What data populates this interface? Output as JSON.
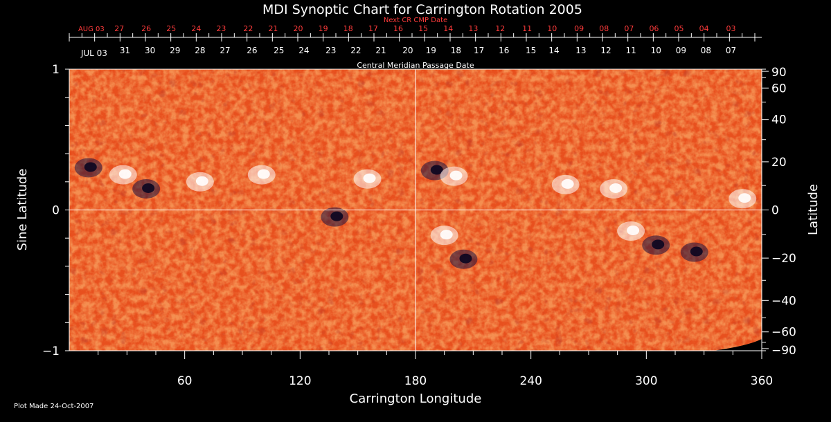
{
  "colors": {
    "background": "#000000",
    "map_base": "#e8501e",
    "positive_flux": "#ffffff",
    "negative_flux": "#1a1040",
    "next_rotation_dates": "#ff3b3b",
    "grid": "#ffffff"
  },
  "chart_data": {
    "type": "heatmap",
    "title": "MDI Synoptic Chart for Carrington Rotation 2005",
    "xlabel": "Carrington Longitude",
    "ylabel_left": "Sine Latitude",
    "ylabel_right": "Latitude",
    "xlim": [
      0,
      360
    ],
    "ylim_sine": [
      -1,
      1
    ],
    "x_ticks": [
      60,
      120,
      180,
      240,
      300,
      360
    ],
    "y_ticks_left": [
      {
        "value": 1,
        "label": "1"
      },
      {
        "value": 0,
        "label": "0"
      },
      {
        "value": -1,
        "label": "−1"
      }
    ],
    "y_ticks_right": [
      90,
      60,
      40,
      20,
      0,
      -20,
      -40,
      -60,
      -90
    ],
    "y_ticks_right_labels": [
      "90",
      "60",
      "40",
      "20",
      "0",
      "−20",
      "−40",
      "−60",
      "−90"
    ],
    "grid_lines": {
      "longitude": 180,
      "sine_latitude": 0
    },
    "top_axis_title": "Central Meridian Passage Date",
    "next_axis_title": "Next CR CMP Date",
    "cmp_dates": [
      {
        "lon": 5,
        "label": "JUL 03"
      },
      {
        "lon": 29,
        "label": "31"
      },
      {
        "lon": 42,
        "label": "30"
      },
      {
        "lon": 55,
        "label": "29"
      },
      {
        "lon": 68,
        "label": "28"
      },
      {
        "lon": 81,
        "label": "27"
      },
      {
        "lon": 95,
        "label": "26"
      },
      {
        "lon": 109,
        "label": "25"
      },
      {
        "lon": 122,
        "label": "24"
      },
      {
        "lon": 136,
        "label": "23"
      },
      {
        "lon": 149,
        "label": "22"
      },
      {
        "lon": 162,
        "label": "21"
      },
      {
        "lon": 176,
        "label": "20"
      },
      {
        "lon": 188,
        "label": "19"
      },
      {
        "lon": 201,
        "label": "18"
      },
      {
        "lon": 213,
        "label": "17"
      },
      {
        "lon": 226,
        "label": "16"
      },
      {
        "lon": 240,
        "label": "15"
      },
      {
        "lon": 252,
        "label": "14"
      },
      {
        "lon": 266,
        "label": "13"
      },
      {
        "lon": 279,
        "label": "12"
      },
      {
        "lon": 292,
        "label": "11"
      },
      {
        "lon": 305,
        "label": "10"
      },
      {
        "lon": 318,
        "label": "09"
      },
      {
        "lon": 331,
        "label": "08"
      },
      {
        "lon": 344,
        "label": "07"
      }
    ],
    "next_cr_dates": [
      {
        "lon": 5,
        "label": "AUG 03"
      },
      {
        "lon": 26,
        "label": "27"
      },
      {
        "lon": 40,
        "label": "26"
      },
      {
        "lon": 53,
        "label": "25"
      },
      {
        "lon": 66,
        "label": "24"
      },
      {
        "lon": 79,
        "label": "23"
      },
      {
        "lon": 93,
        "label": "22"
      },
      {
        "lon": 106,
        "label": "21"
      },
      {
        "lon": 119,
        "label": "20"
      },
      {
        "lon": 132,
        "label": "19"
      },
      {
        "lon": 145,
        "label": "18"
      },
      {
        "lon": 158,
        "label": "17"
      },
      {
        "lon": 171,
        "label": "16"
      },
      {
        "lon": 184,
        "label": "15"
      },
      {
        "lon": 197,
        "label": "14"
      },
      {
        "lon": 210,
        "label": "13"
      },
      {
        "lon": 224,
        "label": "12"
      },
      {
        "lon": 238,
        "label": "11"
      },
      {
        "lon": 251,
        "label": "10"
      },
      {
        "lon": 265,
        "label": "09"
      },
      {
        "lon": 278,
        "label": "08"
      },
      {
        "lon": 291,
        "label": "07"
      },
      {
        "lon": 304,
        "label": "06"
      },
      {
        "lon": 317,
        "label": "05"
      },
      {
        "lon": 330,
        "label": "04"
      },
      {
        "lon": 344,
        "label": "03"
      }
    ],
    "active_regions": [
      {
        "lon": 10,
        "sinlat": 0.3,
        "polarity": "negative"
      },
      {
        "lon": 28,
        "sinlat": 0.25,
        "polarity": "positive"
      },
      {
        "lon": 40,
        "sinlat": 0.15,
        "polarity": "negative"
      },
      {
        "lon": 68,
        "sinlat": 0.2,
        "polarity": "positive"
      },
      {
        "lon": 100,
        "sinlat": 0.25,
        "polarity": "positive"
      },
      {
        "lon": 138,
        "sinlat": -0.05,
        "polarity": "negative"
      },
      {
        "lon": 155,
        "sinlat": 0.22,
        "polarity": "positive"
      },
      {
        "lon": 190,
        "sinlat": 0.28,
        "polarity": "negative"
      },
      {
        "lon": 200,
        "sinlat": 0.24,
        "polarity": "positive"
      },
      {
        "lon": 195,
        "sinlat": -0.18,
        "polarity": "positive"
      },
      {
        "lon": 205,
        "sinlat": -0.35,
        "polarity": "negative"
      },
      {
        "lon": 258,
        "sinlat": 0.18,
        "polarity": "positive"
      },
      {
        "lon": 283,
        "sinlat": 0.15,
        "polarity": "positive"
      },
      {
        "lon": 292,
        "sinlat": -0.15,
        "polarity": "positive"
      },
      {
        "lon": 305,
        "sinlat": -0.25,
        "polarity": "negative"
      },
      {
        "lon": 325,
        "sinlat": -0.3,
        "polarity": "negative"
      },
      {
        "lon": 350,
        "sinlat": 0.08,
        "polarity": "positive"
      }
    ]
  },
  "footer": {
    "plot_made": "Plot Made 24-Oct-2007"
  }
}
